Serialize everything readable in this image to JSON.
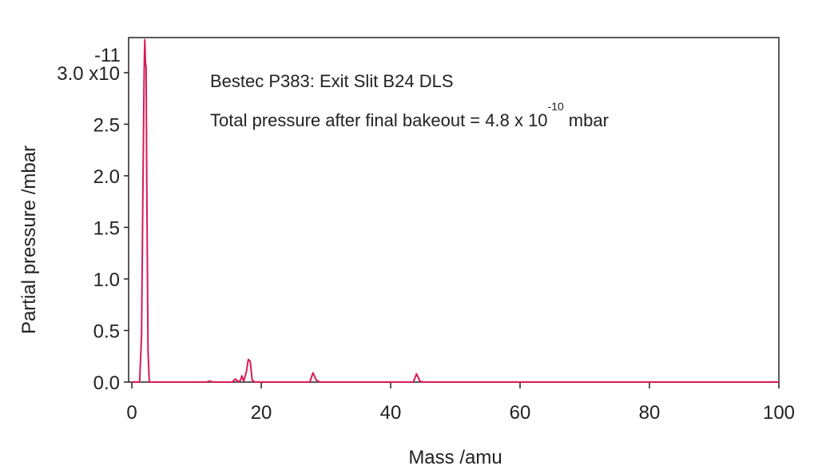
{
  "chart_data": {
    "type": "line",
    "annotations": {
      "line1": "Bestec P383: Exit Slit B24 DLS",
      "line2_text": "Total pressure after final bakeout = 4.8 x 10",
      "line2_exponent": "-10",
      "line2_unit": "mbar"
    },
    "x_label": "Mass /amu",
    "y_label": "Partial pressure /mbar",
    "y_exponent": "-11",
    "xlim": [
      -0.5,
      100
    ],
    "xticks": [
      0,
      20,
      40,
      60,
      80,
      100
    ],
    "ylim": [
      0,
      3.34
    ],
    "yticks": [
      {
        "value": 0,
        "label": "0.0"
      },
      {
        "value": 0.5,
        "label": "0.5"
      },
      {
        "value": 1.0,
        "label": "1.0"
      },
      {
        "value": 1.5,
        "label": "1.5"
      },
      {
        "value": 2.0,
        "label": "2.0"
      },
      {
        "value": 2.5,
        "label": "2.5"
      },
      {
        "value": 3.0,
        "label": "3.0 x10"
      }
    ],
    "series": [
      {
        "color": "#d81b55",
        "x": [
          0,
          1.2,
          1.5,
          1.7,
          1.9,
          2.0,
          2.1,
          2.2,
          2.3,
          2.5,
          2.7,
          3,
          11.5,
          12,
          12.5,
          15.5,
          16,
          16.5,
          16.8,
          17,
          17.3,
          17.7,
          18,
          18.3,
          18.6,
          19,
          27.5,
          28,
          28.5,
          29,
          43.5,
          44,
          44.5,
          45,
          100
        ],
        "values": [
          0,
          0,
          0.45,
          1.8,
          3.0,
          3.32,
          3.1,
          3.05,
          2.0,
          0.3,
          0,
          0,
          0,
          0.01,
          0,
          0,
          0.03,
          0,
          0.02,
          0.06,
          0.01,
          0.1,
          0.22,
          0.2,
          0.02,
          0,
          0,
          0.09,
          0.02,
          0,
          0,
          0.08,
          0.01,
          0,
          0
        ]
      }
    ]
  }
}
